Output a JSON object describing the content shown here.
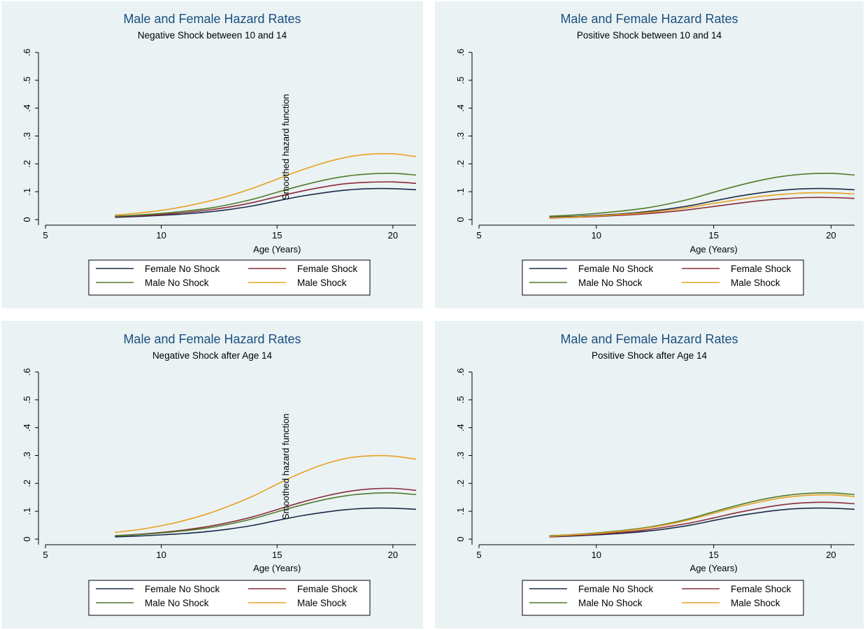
{
  "colors": {
    "background": "#eaf2f3",
    "title": "#1a4f80",
    "female_no_shock": "#1a2a4a",
    "female_shock": "#8b2a3a",
    "male_no_shock": "#4f7a28",
    "male_shock": "#e8a020"
  },
  "chart_data": [
    {
      "type": "line",
      "title": "Male and Female Hazard Rates",
      "subtitle": "Negative Shock between 10 and 14",
      "xlabel": "Age (Years)",
      "ylabel": "",
      "annotation": "Smoothed hazard function",
      "xlim": [
        5,
        21
      ],
      "ylim": [
        0,
        0.6
      ],
      "x_ticks": [
        "5",
        "10",
        "15",
        "20"
      ],
      "y_ticks": [
        "0",
        ".1",
        ".2",
        ".3",
        ".4",
        ".5",
        ".6"
      ],
      "legend": [
        "Female No Shock",
        "Female Shock",
        "Male No Shock",
        "Male Shock"
      ],
      "legend_position": "bottom",
      "grid": false,
      "x": [
        8,
        9,
        10,
        11,
        12,
        13,
        14,
        15,
        16,
        17,
        18,
        19,
        20,
        21
      ],
      "series": [
        {
          "name": "Female No Shock",
          "color": "#1a2a4a",
          "values": [
            0.008,
            0.011,
            0.015,
            0.02,
            0.027,
            0.037,
            0.05,
            0.067,
            0.083,
            0.096,
            0.106,
            0.111,
            0.111,
            0.107
          ]
        },
        {
          "name": "Female Shock",
          "color": "#8b2a3a",
          "values": [
            0.01,
            0.014,
            0.018,
            0.025,
            0.034,
            0.046,
            0.062,
            0.082,
            0.101,
            0.117,
            0.129,
            0.134,
            0.135,
            0.13
          ]
        },
        {
          "name": "Male No Shock",
          "color": "#4f7a28",
          "values": [
            0.012,
            0.016,
            0.022,
            0.03,
            0.04,
            0.055,
            0.074,
            0.098,
            0.121,
            0.141,
            0.156,
            0.164,
            0.166,
            0.16
          ]
        },
        {
          "name": "Male Shock",
          "color": "#e8a020",
          "values": [
            0.016,
            0.023,
            0.033,
            0.047,
            0.065,
            0.087,
            0.114,
            0.145,
            0.176,
            0.203,
            0.224,
            0.235,
            0.236,
            0.226
          ]
        }
      ]
    },
    {
      "type": "line",
      "title": "Male and Female Hazard Rates",
      "subtitle": "Positive Shock between 10 and 14",
      "xlabel": "Age (Years)",
      "ylabel": "",
      "annotation": "",
      "xlim": [
        5,
        21
      ],
      "ylim": [
        0,
        0.6
      ],
      "x_ticks": [
        "5",
        "10",
        "15",
        "20"
      ],
      "y_ticks": [
        "0",
        ".1",
        ".2",
        ".3",
        ".4",
        ".5",
        ".6"
      ],
      "legend": [
        "Female No Shock",
        "Female Shock",
        "Male No Shock",
        "Male Shock"
      ],
      "legend_position": "bottom",
      "grid": false,
      "x": [
        8,
        9,
        10,
        11,
        12,
        13,
        14,
        15,
        16,
        17,
        18,
        19,
        20,
        21
      ],
      "series": [
        {
          "name": "Female No Shock",
          "color": "#1a2a4a",
          "values": [
            0.008,
            0.011,
            0.015,
            0.02,
            0.027,
            0.037,
            0.05,
            0.067,
            0.083,
            0.096,
            0.106,
            0.111,
            0.111,
            0.107
          ]
        },
        {
          "name": "Female Shock",
          "color": "#8b2a3a",
          "values": [
            0.005,
            0.008,
            0.011,
            0.015,
            0.02,
            0.027,
            0.036,
            0.047,
            0.058,
            0.068,
            0.075,
            0.079,
            0.079,
            0.076
          ]
        },
        {
          "name": "Male No Shock",
          "color": "#4f7a28",
          "values": [
            0.012,
            0.016,
            0.022,
            0.03,
            0.04,
            0.055,
            0.074,
            0.098,
            0.121,
            0.141,
            0.156,
            0.164,
            0.166,
            0.16
          ]
        },
        {
          "name": "Male Shock",
          "color": "#e8a020",
          "values": [
            0.006,
            0.009,
            0.013,
            0.018,
            0.024,
            0.033,
            0.044,
            0.058,
            0.071,
            0.083,
            0.091,
            0.096,
            0.096,
            0.092
          ]
        }
      ]
    },
    {
      "type": "line",
      "title": "Male and Female Hazard Rates",
      "subtitle": "Negative Shock after Age 14",
      "xlabel": "Age (Years)",
      "ylabel": "",
      "annotation": "Smoothed hazard function",
      "xlim": [
        5,
        21
      ],
      "ylim": [
        0,
        0.6
      ],
      "x_ticks": [
        "5",
        "10",
        "15",
        "20"
      ],
      "y_ticks": [
        "0",
        ".1",
        ".2",
        ".3",
        ".4",
        ".5",
        ".6"
      ],
      "legend": [
        "Female No Shock",
        "Female Shock",
        "Male No Shock",
        "Male Shock"
      ],
      "legend_position": "bottom",
      "grid": false,
      "x": [
        8,
        9,
        10,
        11,
        12,
        13,
        14,
        15,
        16,
        17,
        18,
        19,
        20,
        21
      ],
      "series": [
        {
          "name": "Female No Shock",
          "color": "#1a2a4a",
          "values": [
            0.008,
            0.011,
            0.015,
            0.02,
            0.027,
            0.037,
            0.05,
            0.067,
            0.083,
            0.096,
            0.106,
            0.111,
            0.111,
            0.107
          ]
        },
        {
          "name": "Female Shock",
          "color": "#8b2a3a",
          "values": [
            0.012,
            0.017,
            0.024,
            0.033,
            0.045,
            0.061,
            0.081,
            0.106,
            0.131,
            0.153,
            0.17,
            0.18,
            0.182,
            0.175
          ]
        },
        {
          "name": "Male No Shock",
          "color": "#4f7a28",
          "values": [
            0.012,
            0.016,
            0.022,
            0.03,
            0.04,
            0.055,
            0.074,
            0.098,
            0.121,
            0.141,
            0.156,
            0.164,
            0.166,
            0.16
          ]
        },
        {
          "name": "Male Shock",
          "color": "#e8a020",
          "values": [
            0.024,
            0.034,
            0.048,
            0.067,
            0.091,
            0.121,
            0.156,
            0.197,
            0.236,
            0.268,
            0.29,
            0.299,
            0.298,
            0.287
          ]
        }
      ]
    },
    {
      "type": "line",
      "title": "Male and Female Hazard Rates",
      "subtitle": "Positive Shock after Age 14",
      "xlabel": "Age (Years)",
      "ylabel": "",
      "annotation": "",
      "xlim": [
        5,
        21
      ],
      "ylim": [
        0,
        0.6
      ],
      "x_ticks": [
        "5",
        "10",
        "15",
        "20"
      ],
      "y_ticks": [
        "0",
        ".1",
        ".2",
        ".3",
        ".4",
        ".5",
        ".6"
      ],
      "legend": [
        "Female No Shock",
        "Female Shock",
        "Male No Shock",
        "Male Shock"
      ],
      "legend_position": "bottom",
      "grid": false,
      "x": [
        8,
        9,
        10,
        11,
        12,
        13,
        14,
        15,
        16,
        17,
        18,
        19,
        20,
        21
      ],
      "series": [
        {
          "name": "Female No Shock",
          "color": "#1a2a4a",
          "values": [
            0.008,
            0.011,
            0.015,
            0.02,
            0.027,
            0.037,
            0.05,
            0.067,
            0.083,
            0.096,
            0.106,
            0.111,
            0.111,
            0.107
          ]
        },
        {
          "name": "Female Shock",
          "color": "#8b2a3a",
          "values": [
            0.009,
            0.013,
            0.018,
            0.024,
            0.032,
            0.044,
            0.058,
            0.076,
            0.095,
            0.111,
            0.124,
            0.131,
            0.132,
            0.127
          ]
        },
        {
          "name": "Male No Shock",
          "color": "#4f7a28",
          "values": [
            0.012,
            0.016,
            0.022,
            0.03,
            0.04,
            0.055,
            0.074,
            0.098,
            0.121,
            0.141,
            0.156,
            0.164,
            0.166,
            0.16
          ]
        },
        {
          "name": "Male Shock",
          "color": "#e8a020",
          "values": [
            0.01,
            0.015,
            0.02,
            0.028,
            0.038,
            0.052,
            0.07,
            0.093,
            0.115,
            0.134,
            0.149,
            0.157,
            0.159,
            0.153
          ]
        }
      ]
    }
  ]
}
